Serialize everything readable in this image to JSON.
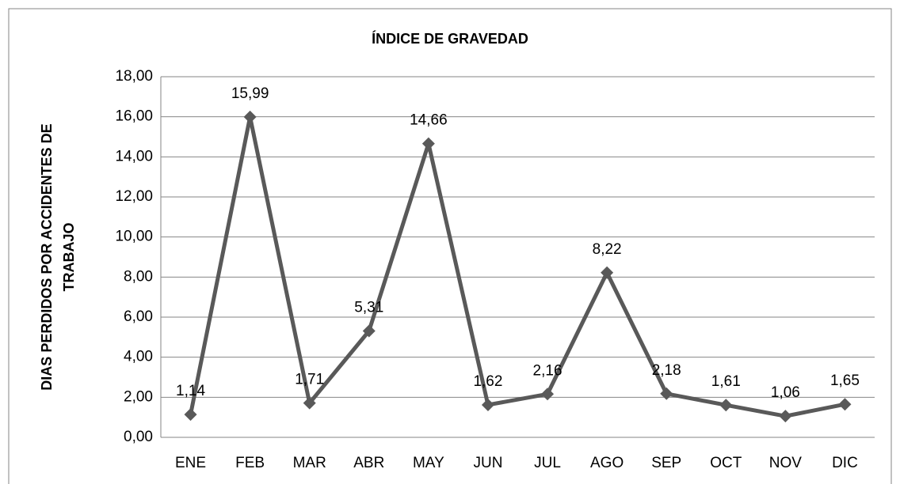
{
  "chart_data": {
    "type": "line",
    "title": "ÍNDICE DE GRAVEDAD",
    "ylabel": [
      "DIAS PERDIDOS POR ACCIDENTES DE",
      "TRABAJO"
    ],
    "categories": [
      "ENE",
      "FEB",
      "MAR",
      "ABR",
      "MAY",
      "JUN",
      "JUL",
      "AGO",
      "SEP",
      "OCT",
      "NOV",
      "DIC"
    ],
    "series": [
      {
        "color": "#595959",
        "values": [
          1.14,
          15.99,
          1.71,
          5.31,
          14.66,
          1.62,
          2.16,
          8.22,
          2.18,
          1.61,
          1.06,
          1.65
        ],
        "value_labels": [
          "1,14",
          "15,99",
          "1,71",
          "5,31",
          "14,66",
          "1,62",
          "2,16",
          "8,22",
          "2,18",
          "1,61",
          "1,06",
          "1,65"
        ]
      }
    ],
    "ylim": [
      0,
      18
    ],
    "yticks": [
      {
        "value": 0,
        "label": "0,00"
      },
      {
        "value": 2,
        "label": "2,00"
      },
      {
        "value": 4,
        "label": "4,00"
      },
      {
        "value": 6,
        "label": "6,00"
      },
      {
        "value": 8,
        "label": "8,00"
      },
      {
        "value": 10,
        "label": "10,00"
      },
      {
        "value": 12,
        "label": "12,00"
      },
      {
        "value": 14,
        "label": "14,00"
      },
      {
        "value": 16,
        "label": "16,00"
      },
      {
        "value": 18,
        "label": "18,00"
      }
    ],
    "grid": true
  }
}
